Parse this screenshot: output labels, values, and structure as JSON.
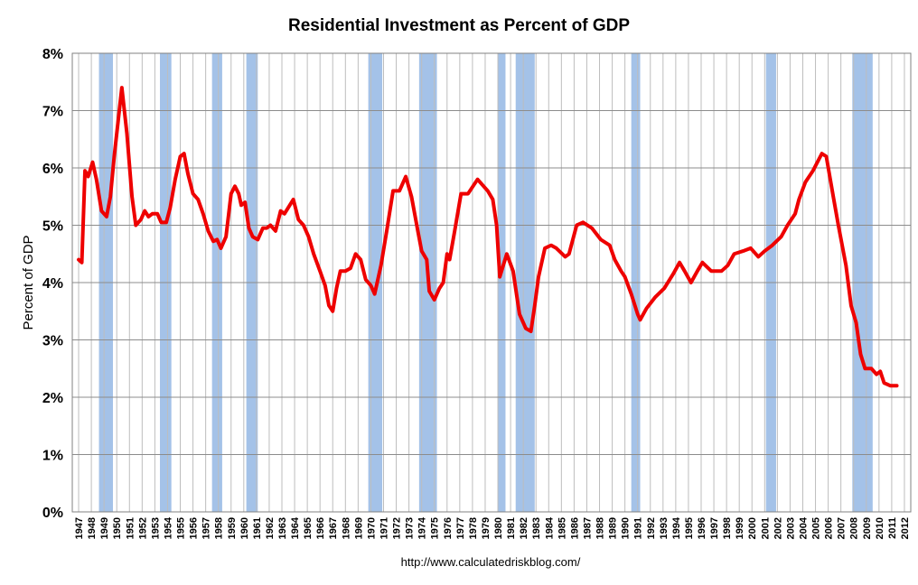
{
  "chart_data": {
    "type": "line",
    "title": "Residential Investment as Percent of GDP",
    "ylabel": "Percent of GDP",
    "source": "http://www.calculatedriskblog.com/",
    "xlim": [
      1946.5,
      2012.5
    ],
    "xticks": [
      1947,
      1948,
      1949,
      1950,
      1951,
      1952,
      1953,
      1954,
      1955,
      1956,
      1957,
      1958,
      1959,
      1960,
      1961,
      1962,
      1963,
      1964,
      1965,
      1966,
      1967,
      1968,
      1969,
      1970,
      1971,
      1972,
      1973,
      1974,
      1975,
      1976,
      1977,
      1978,
      1979,
      1980,
      1981,
      1982,
      1983,
      1984,
      1985,
      1986,
      1987,
      1988,
      1989,
      1990,
      1991,
      1992,
      1993,
      1994,
      1995,
      1996,
      1997,
      1998,
      1999,
      2000,
      2001,
      2002,
      2003,
      2004,
      2005,
      2006,
      2007,
      2008,
      2009,
      2010,
      2011,
      2012
    ],
    "ylim": [
      0,
      8
    ],
    "yticks": [
      {
        "value": 0,
        "label": "0%"
      },
      {
        "value": 1,
        "label": "1%"
      },
      {
        "value": 2,
        "label": "2%"
      },
      {
        "value": 3,
        "label": "3%"
      },
      {
        "value": 4,
        "label": "4%"
      },
      {
        "value": 5,
        "label": "5%"
      },
      {
        "value": 6,
        "label": "6%"
      },
      {
        "value": 7,
        "label": "7%"
      },
      {
        "value": 8,
        "label": "8%"
      }
    ],
    "grid": true,
    "recession_color": "#a4c2e8",
    "recessions": [
      [
        1948.6,
        1949.7
      ],
      [
        1953.4,
        1954.3
      ],
      [
        1957.5,
        1958.3
      ],
      [
        1960.2,
        1961.1
      ],
      [
        1969.8,
        1970.9
      ],
      [
        1973.8,
        1975.2
      ],
      [
        1980.0,
        1980.6
      ],
      [
        1981.4,
        1982.9
      ],
      [
        1990.5,
        1991.2
      ],
      [
        2001.1,
        2001.9
      ],
      [
        2007.9,
        2009.5
      ]
    ],
    "color": "#ee0000",
    "x": [
      1947.0,
      1947.25,
      1947.5,
      1947.75,
      1948.1,
      1948.4,
      1948.8,
      1949.2,
      1949.5,
      1949.8,
      1950.2,
      1950.4,
      1950.8,
      1951.2,
      1951.5,
      1951.9,
      1952.2,
      1952.5,
      1952.8,
      1953.2,
      1953.5,
      1953.9,
      1954.2,
      1954.6,
      1955.0,
      1955.3,
      1955.6,
      1956.0,
      1956.4,
      1956.8,
      1957.2,
      1957.6,
      1957.9,
      1958.2,
      1958.6,
      1959.0,
      1959.3,
      1959.6,
      1959.8,
      1960.1,
      1960.4,
      1960.7,
      1961.1,
      1961.5,
      1961.8,
      1962.1,
      1962.5,
      1962.9,
      1963.2,
      1963.9,
      1964.3,
      1964.7,
      1965.1,
      1965.5,
      1966.0,
      1966.4,
      1966.7,
      1967.0,
      1967.3,
      1967.6,
      1968.0,
      1968.4,
      1968.8,
      1969.2,
      1969.6,
      1970.0,
      1970.3,
      1970.8,
      1971.25,
      1971.75,
      1972.25,
      1972.75,
      1973.2,
      1973.7,
      1974.0,
      1974.4,
      1974.6,
      1975.0,
      1975.4,
      1975.7,
      1976.0,
      1976.2,
      1976.6,
      1977.1,
      1977.65,
      1978.4,
      1979.2,
      1979.6,
      1979.9,
      1980.15,
      1980.7,
      1981.2,
      1981.7,
      1982.2,
      1982.6,
      1982.9,
      1983.2,
      1983.7,
      1984.2,
      1984.6,
      1985.3,
      1985.6,
      1986.2,
      1986.7,
      1987.4,
      1988.1,
      1988.8,
      1989.2,
      1989.7,
      1990.0,
      1990.5,
      1991.0,
      1991.2,
      1991.7,
      1992.4,
      1993.1,
      1993.8,
      1994.3,
      1994.7,
      1995.2,
      1995.7,
      1996.1,
      1996.8,
      1997.6,
      1998.1,
      1998.6,
      1999.3,
      1999.9,
      2000.5,
      2001.0,
      2001.6,
      2002.3,
      2002.8,
      2003.4,
      2003.7,
      2004.2,
      2004.8,
      2005.5,
      2005.85,
      2006.4,
      2006.8,
      2007.4,
      2007.8,
      2008.2,
      2008.55,
      2008.9,
      2009.4,
      2009.8,
      2010.1,
      2010.4,
      2010.9,
      2011.4
    ],
    "values": [
      4.4,
      4.35,
      5.95,
      5.85,
      6.1,
      5.8,
      5.25,
      5.15,
      5.5,
      6.2,
      7.0,
      7.4,
      6.6,
      5.5,
      5.0,
      5.1,
      5.25,
      5.15,
      5.2,
      5.2,
      5.05,
      5.05,
      5.3,
      5.8,
      6.2,
      6.25,
      5.9,
      5.55,
      5.45,
      5.2,
      4.9,
      4.72,
      4.75,
      4.6,
      4.8,
      5.55,
      5.68,
      5.55,
      5.35,
      5.4,
      4.95,
      4.8,
      4.75,
      4.95,
      4.95,
      5.0,
      4.9,
      5.25,
      5.2,
      5.45,
      5.1,
      5.0,
      4.8,
      4.5,
      4.2,
      3.95,
      3.6,
      3.5,
      3.9,
      4.2,
      4.2,
      4.25,
      4.5,
      4.4,
      4.05,
      3.95,
      3.8,
      4.3,
      4.9,
      5.6,
      5.6,
      5.85,
      5.5,
      4.9,
      4.55,
      4.4,
      3.85,
      3.7,
      3.9,
      4.0,
      4.5,
      4.4,
      4.9,
      5.55,
      5.55,
      5.8,
      5.6,
      5.45,
      5.0,
      4.1,
      4.5,
      4.2,
      3.45,
      3.2,
      3.15,
      3.6,
      4.1,
      4.6,
      4.65,
      4.6,
      4.45,
      4.5,
      5.0,
      5.05,
      4.95,
      4.75,
      4.65,
      4.4,
      4.2,
      4.1,
      3.8,
      3.45,
      3.35,
      3.55,
      3.75,
      3.9,
      4.15,
      4.35,
      4.2,
      4.0,
      4.2,
      4.35,
      4.2,
      4.2,
      4.3,
      4.5,
      4.55,
      4.6,
      4.45,
      4.55,
      4.65,
      4.8,
      5.0,
      5.2,
      5.45,
      5.75,
      5.95,
      6.25,
      6.2,
      5.5,
      5.0,
      4.3,
      3.6,
      3.3,
      2.75,
      2.5,
      2.5,
      2.4,
      2.45,
      2.25,
      2.2,
      2.2
    ]
  }
}
